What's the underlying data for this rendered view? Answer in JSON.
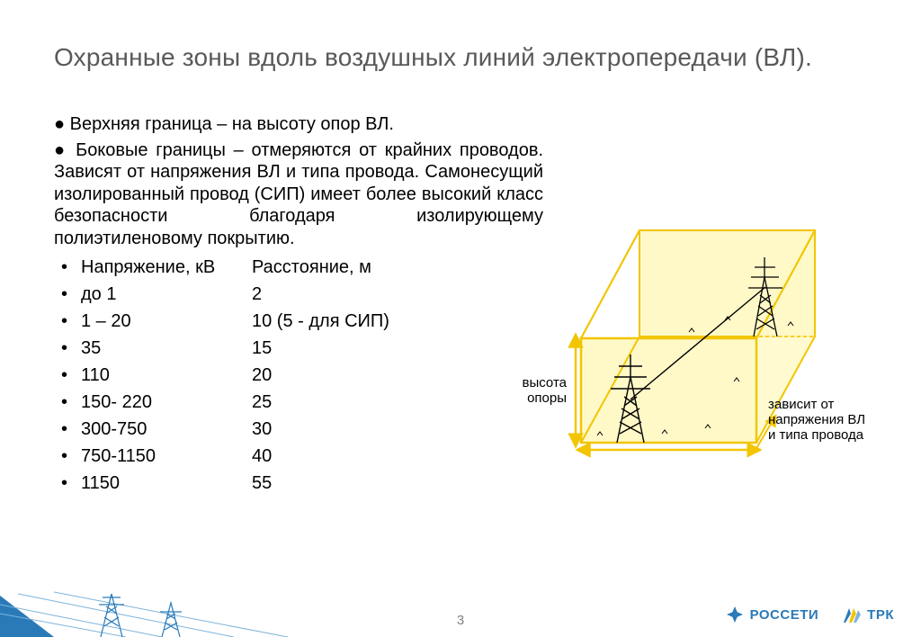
{
  "title": "Охранные зоны вдоль воздушных линий электропередачи (ВЛ).",
  "para1": "Верхняя граница – на высоту опор ВЛ.",
  "para2": "Боковые границы – отмеряются от крайних проводов. Зависят от напряжения ВЛ и типа провода. Самонесущий изолированный провод (СИП) имеет более высокий класс безопасности благодаря изолирующему полиэтиленовому покрытию.",
  "table": {
    "header": {
      "c1": "Напряжение, кВ",
      "c2": "Расстояние, м"
    },
    "rows": [
      {
        "c1": "до 1",
        "c2": " 2"
      },
      {
        "c1": "1 – 20",
        "c2": "10 (5 - для СИП)"
      },
      {
        "c1": "35",
        "c2": "15"
      },
      {
        "c1": "110",
        "c2": "20"
      },
      {
        "c1": "150- 220",
        "c2": "25"
      },
      {
        "c1": "300-750",
        "c2": "30"
      },
      {
        "c1": "750-1150",
        "c2": "40"
      },
      {
        "c1": "1150",
        "c2": "55"
      }
    ]
  },
  "diagram": {
    "box_fill": "#fff9c8",
    "box_stroke": "#f2c500",
    "arrow_stroke": "#f2c500",
    "tower_stroke": "#000000",
    "label_height": "высота\nопоры",
    "label_depends": "зависит от\nнапряжения ВЛ\nи типа провода"
  },
  "page_number": "3",
  "logos": {
    "rosseti": "РОССЕТИ",
    "trk": "ТРК"
  },
  "colors": {
    "title": "#595959",
    "footer_blue": "#2a7ab8",
    "footer_blue_light": "#7db4db",
    "page_num": "#808080"
  }
}
